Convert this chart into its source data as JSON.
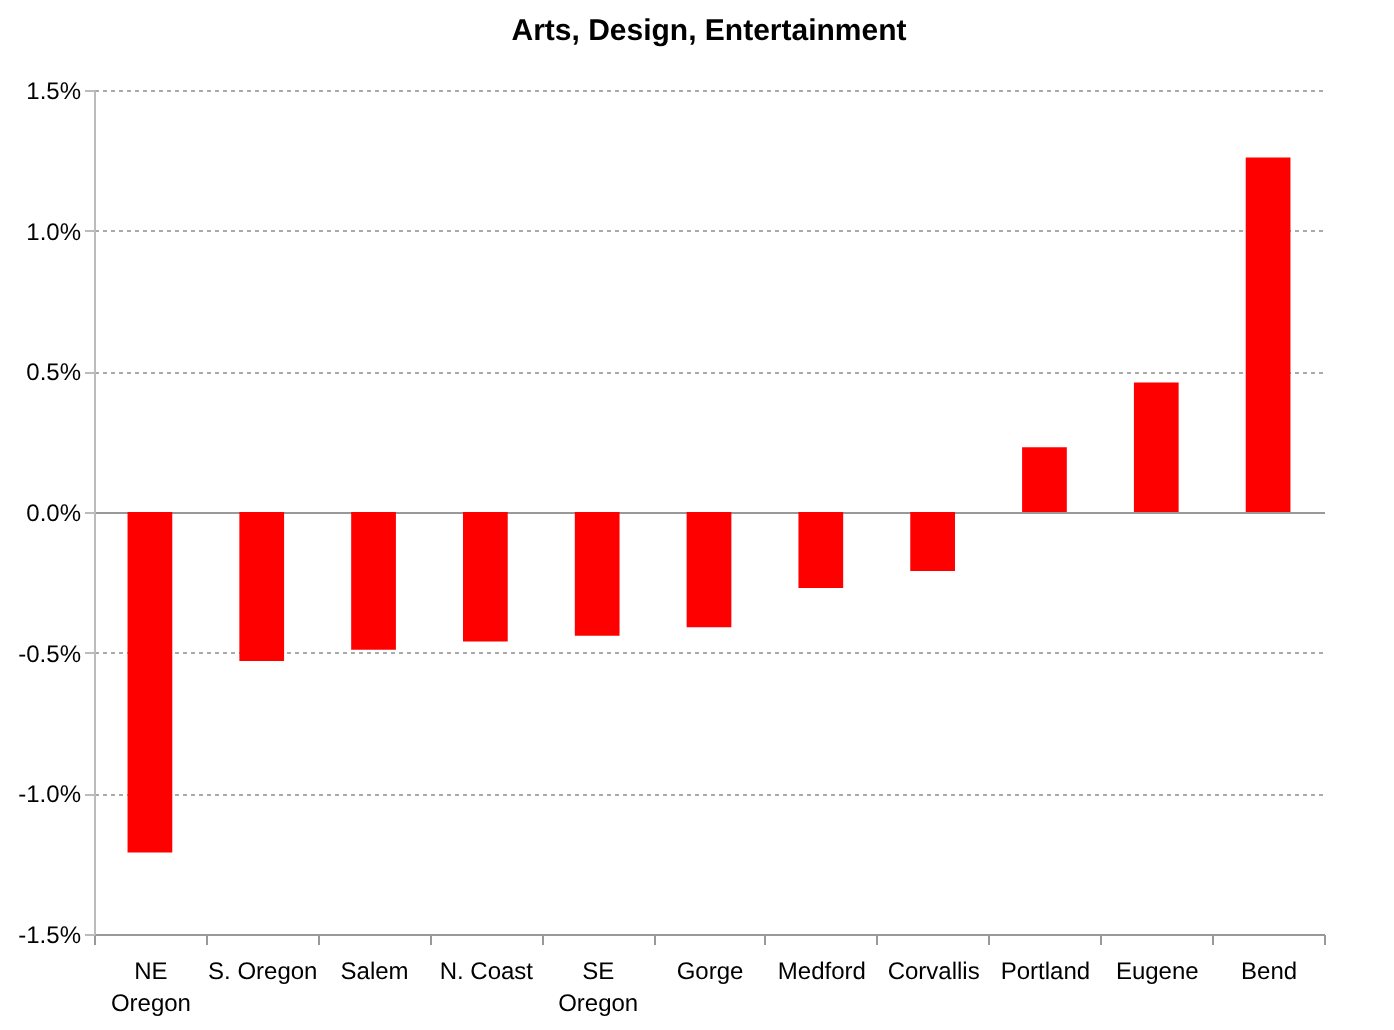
{
  "chart_data": {
    "type": "bar",
    "title": "Arts, Design,  Entertainment",
    "categories": [
      "NE Oregon",
      "S. Oregon",
      "Salem",
      "N. Coast",
      "SE Oregon",
      "Gorge",
      "Medford",
      "Corvallis",
      "Portland",
      "Eugene",
      "Bend"
    ],
    "values": [
      -1.21,
      -0.53,
      -0.49,
      -0.46,
      -0.44,
      -0.41,
      -0.27,
      -0.21,
      0.23,
      0.46,
      1.26
    ],
    "color": "#ff0000",
    "ylim": [
      -1.5,
      1.5
    ],
    "yticks": [
      {
        "value": -1.5,
        "label": "-1.5%"
      },
      {
        "value": -1.0,
        "label": "-1.0%"
      },
      {
        "value": -0.5,
        "label": "-0.5%"
      },
      {
        "value": 0,
        "label": "0.0%"
      },
      {
        "value": 0.5,
        "label": "0.5%"
      },
      {
        "value": 1.0,
        "label": "1.0%"
      },
      {
        "value": 1.5,
        "label": "1.5%"
      }
    ],
    "grid": "y"
  }
}
